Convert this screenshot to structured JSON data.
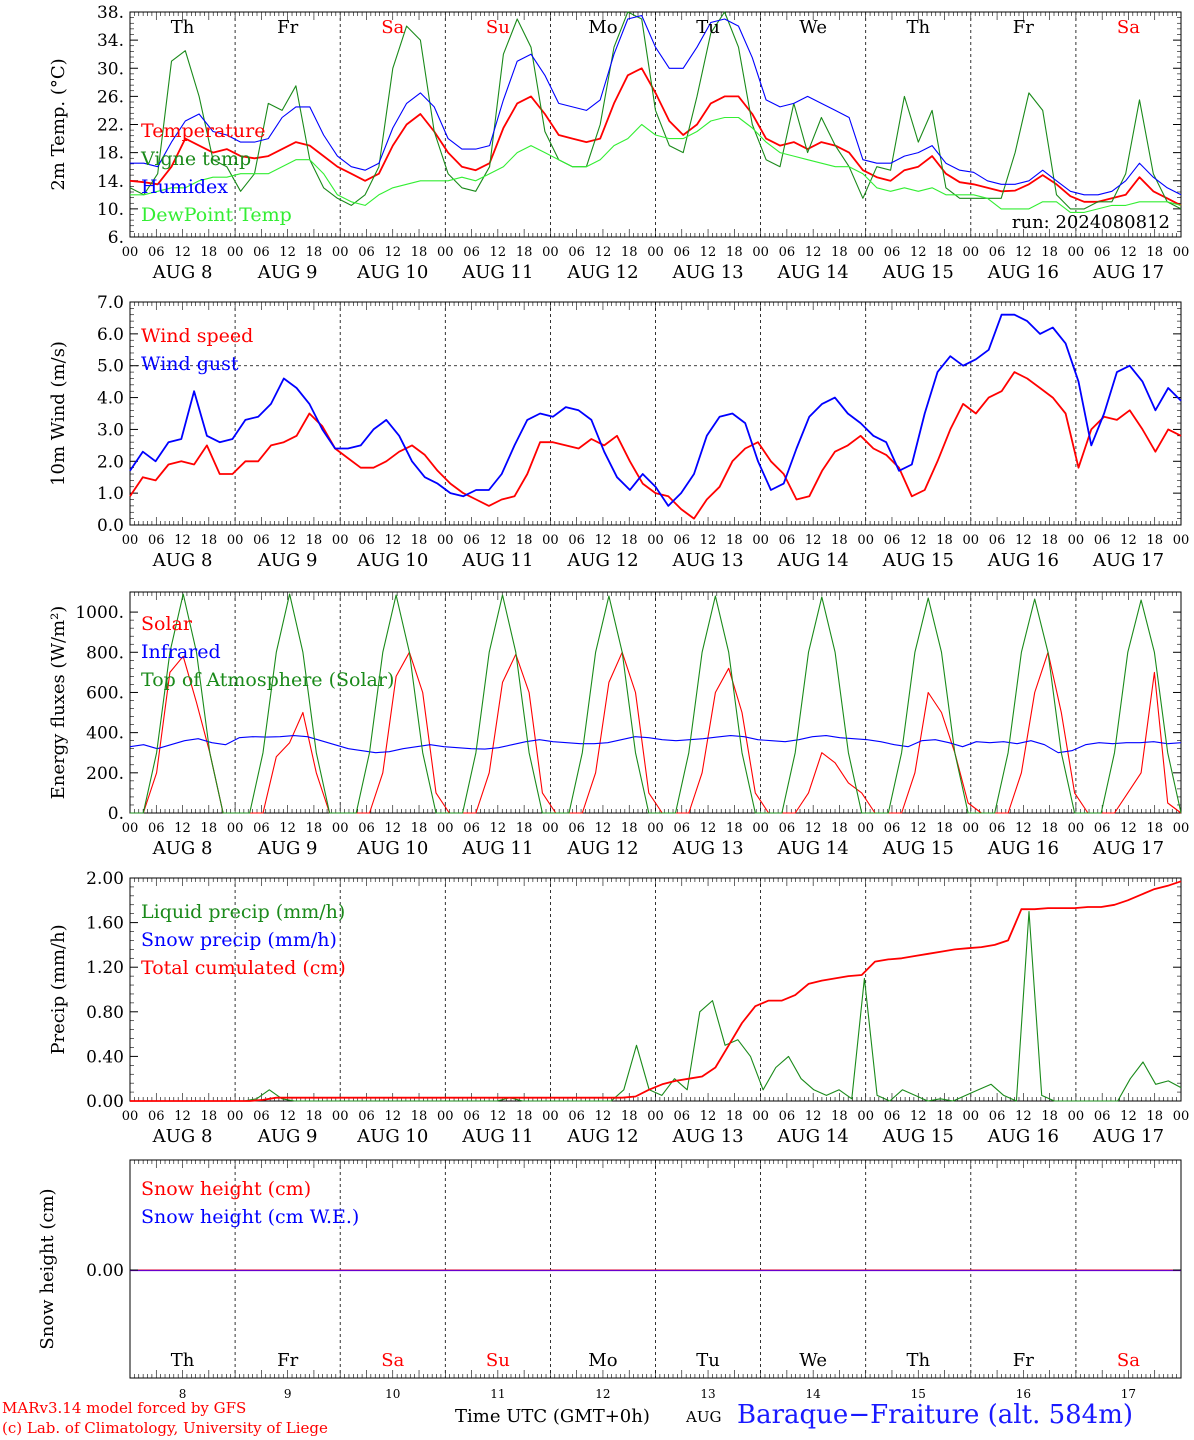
{
  "chart_data": [
    {
      "type": "line",
      "ylabel": "2m Temp. (°C)",
      "ylim": [
        6,
        38
      ],
      "yticks": [
        "6.",
        "10.",
        "14.",
        "18.",
        "22.",
        "26.",
        "30.",
        "34.",
        "38."
      ],
      "day_names": [
        "Th",
        "Fr",
        "Sa",
        "Su",
        "Mo",
        "Tu",
        "We",
        "Th",
        "Fr",
        "Sa"
      ],
      "day_name_colors": [
        "#000000",
        "#000000",
        "#ff0000",
        "#ff0000",
        "#000000",
        "#000000",
        "#000000",
        "#000000",
        "#000000",
        "#ff0000"
      ],
      "annotation": "run: 2024080812",
      "series": [
        {
          "name": "Temperature",
          "color": "#ff0000",
          "values": [
            14,
            13.8,
            13.5,
            16,
            20,
            19,
            18,
            18.5,
            17.5,
            17.2,
            17.5,
            18.5,
            19.5,
            19,
            17.5,
            16,
            15,
            14,
            15,
            19,
            22,
            23.5,
            21,
            18,
            16,
            15.5,
            16.5,
            21.5,
            25,
            26,
            23.5,
            20.5,
            20,
            19.5,
            20,
            25,
            29,
            30,
            26.5,
            22.5,
            20.5,
            22,
            25,
            26,
            26,
            23.5,
            20,
            19,
            19.5,
            18.5,
            19.5,
            19,
            18,
            15.5,
            14.5,
            14,
            15.5,
            16,
            17.5,
            15,
            13.8,
            13.5,
            13,
            12.5,
            12.6,
            13.5,
            14.8,
            13.5,
            11.8,
            11,
            11,
            11.5,
            12,
            14.5,
            12.5,
            11.5,
            10.5
          ]
        },
        {
          "name": "Vigne temp",
          "color": "#1a8a1a",
          "values": [
            13,
            12,
            15,
            31,
            32.5,
            26,
            17,
            16,
            12.5,
            15,
            25,
            24,
            27.5,
            17,
            13,
            11.5,
            10.5,
            12,
            16,
            30,
            36,
            34,
            21,
            15,
            13,
            12.5,
            16,
            32,
            37,
            33,
            21,
            17,
            16,
            16,
            22,
            33,
            38,
            37,
            24,
            19,
            18,
            26,
            35,
            38,
            33,
            22,
            17,
            16,
            25,
            18,
            23,
            19,
            16,
            11.5,
            16,
            15.5,
            26,
            19.5,
            24,
            13,
            11.5,
            11.5,
            11.5,
            11.5,
            18,
            26.5,
            24,
            12,
            10,
            10,
            11,
            11,
            15,
            25.5,
            15,
            11,
            10
          ]
        },
        {
          "name": "Humidex",
          "color": "#0000ff",
          "values": [
            16.5,
            16.5,
            16,
            19.5,
            22.5,
            23.5,
            21,
            20.5,
            19.5,
            19.5,
            20,
            23,
            24.5,
            24.5,
            20.5,
            17.5,
            16,
            15.5,
            16.5,
            21.5,
            25,
            26.5,
            24.5,
            20,
            18.5,
            18.5,
            19,
            25.5,
            31,
            32,
            29,
            25,
            24.5,
            24,
            25.5,
            32,
            37,
            37.5,
            33,
            30,
            30,
            33,
            36.5,
            37,
            36,
            31.5,
            25.5,
            24.5,
            25,
            26,
            25,
            24,
            23,
            17,
            16.5,
            16.5,
            17.5,
            18,
            19,
            16.5,
            15.5,
            15.2,
            14,
            13.5,
            13.5,
            14,
            15.5,
            14,
            12.5,
            12,
            12,
            12.5,
            14,
            16.5,
            14.5,
            13,
            12
          ]
        },
        {
          "name": "DewPoint Temp",
          "color": "#33ee33",
          "values": [
            12,
            12,
            12.5,
            13,
            13,
            14,
            14.5,
            14.5,
            15,
            15,
            15,
            16,
            17,
            17,
            15,
            12,
            11,
            10.5,
            12,
            13,
            13.5,
            14,
            14,
            14,
            14.5,
            14,
            15,
            16,
            18,
            19,
            18,
            17,
            16,
            16,
            17,
            19,
            20,
            22,
            20.5,
            20,
            20,
            21,
            22.5,
            23,
            23,
            21.5,
            19.5,
            18,
            17.5,
            17,
            16.5,
            16,
            16,
            15,
            13,
            12.5,
            13,
            12.5,
            13,
            12,
            12,
            12,
            11.5,
            10,
            10,
            10,
            11,
            11,
            9.5,
            9.5,
            10,
            10.5,
            10.5,
            11,
            11,
            11,
            10.5
          ]
        }
      ],
      "legend_placement": "top-left"
    },
    {
      "type": "line",
      "ylabel": "10m Wind (m/s)",
      "ylim": [
        0,
        7
      ],
      "yticks": [
        "0.0",
        "1.0",
        "2.0",
        "3.0",
        "4.0",
        "5.0",
        "6.0",
        "7.0"
      ],
      "reference_line": 5,
      "series": [
        {
          "name": "Wind speed",
          "color": "#ff0000",
          "values": [
            0.9,
            1.5,
            1.4,
            1.9,
            2.0,
            1.9,
            2.5,
            1.6,
            1.6,
            2.0,
            2.0,
            2.5,
            2.6,
            2.8,
            3.5,
            3.1,
            2.4,
            2.1,
            1.8,
            1.8,
            2.0,
            2.3,
            2.5,
            2.2,
            1.7,
            1.3,
            1.0,
            0.8,
            0.6,
            0.8,
            0.9,
            1.6,
            2.6,
            2.6,
            2.5,
            2.4,
            2.7,
            2.5,
            2.8,
            2.0,
            1.3,
            1.0,
            0.9,
            0.5,
            0.2,
            0.8,
            1.2,
            2.0,
            2.4,
            2.6,
            2.0,
            1.6,
            0.8,
            0.9,
            1.7,
            2.3,
            2.5,
            2.8,
            2.4,
            2.2,
            1.8,
            0.9,
            1.1,
            2.0,
            3.0,
            3.8,
            3.5,
            4.0,
            4.2,
            4.8,
            4.6,
            4.3,
            4.0,
            3.5,
            1.8,
            3.0,
            3.4,
            3.3,
            3.6,
            3.0,
            2.3,
            3.0,
            2.8
          ]
        },
        {
          "name": "Wind gust",
          "color": "#0000ff",
          "values": [
            1.7,
            2.3,
            2.0,
            2.6,
            2.7,
            4.2,
            2.8,
            2.6,
            2.7,
            3.3,
            3.4,
            3.8,
            4.6,
            4.3,
            3.8,
            3.0,
            2.4,
            2.4,
            2.5,
            3.0,
            3.3,
            2.8,
            2.0,
            1.5,
            1.3,
            1.0,
            0.9,
            1.1,
            1.1,
            1.6,
            2.5,
            3.3,
            3.5,
            3.4,
            3.7,
            3.6,
            3.3,
            2.3,
            1.5,
            1.1,
            1.6,
            1.2,
            0.6,
            1.0,
            1.6,
            2.8,
            3.4,
            3.5,
            3.2,
            2.0,
            1.1,
            1.3,
            2.4,
            3.4,
            3.8,
            4.0,
            3.5,
            3.2,
            2.8,
            2.6,
            1.7,
            1.9,
            3.5,
            4.8,
            5.3,
            5.0,
            5.2,
            5.5,
            6.6,
            6.6,
            6.4,
            6.0,
            6.2,
            5.7,
            4.5,
            2.5,
            3.5,
            4.8,
            5.0,
            4.5,
            3.6,
            4.3,
            3.9
          ]
        }
      ],
      "legend_placement": "top-left"
    },
    {
      "type": "line",
      "ylabel": "Energy fluxes (W/m²)",
      "ylim": [
        0,
        1100
      ],
      "yticks": [
        "0.",
        "200.",
        "400.",
        "600.",
        "800.",
        "1000."
      ],
      "series": [
        {
          "name": "Solar",
          "color": "#ff0000",
          "values": [
            0,
            0,
            200,
            700,
            780,
            550,
            300,
            0,
            0,
            0,
            0,
            280,
            350,
            500,
            200,
            0,
            0,
            0,
            0,
            200,
            680,
            800,
            600,
            100,
            0,
            0,
            0,
            200,
            650,
            790,
            600,
            100,
            0,
            0,
            0,
            200,
            650,
            800,
            600,
            100,
            0,
            0,
            0,
            200,
            600,
            720,
            500,
            100,
            0,
            0,
            0,
            100,
            300,
            250,
            150,
            100,
            0,
            0,
            0,
            200,
            600,
            500,
            300,
            50,
            0,
            0,
            0,
            200,
            600,
            800,
            500,
            100,
            0,
            0,
            0,
            100,
            200,
            700,
            50,
            0
          ]
        },
        {
          "name": "Infrared",
          "color": "#0000ff",
          "values": [
            330,
            340,
            320,
            340,
            360,
            370,
            350,
            340,
            375,
            380,
            378,
            380,
            385,
            380,
            360,
            340,
            320,
            310,
            300,
            305,
            320,
            330,
            340,
            330,
            325,
            320,
            318,
            325,
            340,
            355,
            365,
            355,
            350,
            345,
            345,
            350,
            365,
            380,
            375,
            365,
            360,
            365,
            370,
            378,
            385,
            380,
            365,
            360,
            355,
            365,
            380,
            385,
            375,
            370,
            365,
            355,
            340,
            330,
            360,
            365,
            350,
            330,
            355,
            350,
            355,
            345,
            360,
            340,
            300,
            310,
            340,
            350,
            345,
            350,
            350,
            355,
            345,
            350
          ]
        },
        {
          "name": "Top of Atmosphere (Solar)",
          "color": "#1a8a1a",
          "values": [
            0,
            0,
            300,
            800,
            1090,
            800,
            300,
            0,
            0,
            0,
            300,
            800,
            1090,
            800,
            300,
            0,
            0,
            0,
            300,
            800,
            1085,
            800,
            300,
            0,
            0,
            0,
            300,
            800,
            1085,
            800,
            300,
            0,
            0,
            0,
            300,
            800,
            1080,
            800,
            300,
            0,
            0,
            0,
            300,
            800,
            1080,
            800,
            300,
            0,
            0,
            0,
            300,
            800,
            1075,
            800,
            300,
            0,
            0,
            0,
            300,
            800,
            1070,
            800,
            300,
            0,
            0,
            0,
            300,
            800,
            1065,
            800,
            300,
            0,
            0,
            0,
            300,
            800,
            1060,
            800,
            300,
            0
          ]
        }
      ],
      "legend_placement": "top-left"
    },
    {
      "type": "line",
      "ylabel": "Precip (mm/h)",
      "ylim": [
        0,
        2
      ],
      "yticks": [
        "0.00",
        "0.40",
        "0.80",
        "1.20",
        "1.60",
        "2.00"
      ],
      "series": [
        {
          "name": "Liquid precip (mm/h)",
          "color": "#1a8a1a",
          "values": [
            0,
            0,
            0,
            0,
            0,
            0,
            0,
            0,
            0,
            0,
            0.02,
            0.1,
            0.02,
            0,
            0,
            0,
            0,
            0,
            0,
            0,
            0,
            0,
            0,
            0,
            0,
            0,
            0,
            0,
            0,
            0,
            0.03,
            0,
            0,
            0,
            0,
            0,
            0,
            0,
            0,
            0.1,
            0.5,
            0.1,
            0.05,
            0.2,
            0.1,
            0.8,
            0.9,
            0.5,
            0.55,
            0.4,
            0.1,
            0.3,
            0.4,
            0.2,
            0.1,
            0.05,
            0.1,
            0.02,
            1.1,
            0.05,
            0,
            0.1,
            0.05,
            0,
            0.02,
            0,
            0.05,
            0.1,
            0.15,
            0.05,
            0,
            1.7,
            0.05,
            0,
            0,
            0,
            0,
            0,
            0,
            0.2,
            0.35,
            0.15,
            0.18,
            0.12
          ]
        },
        {
          "name": "Snow precip (mm/h)",
          "color": "#0000ff",
          "values": []
        },
        {
          "name": "Total cumulated (cm)",
          "color": "#ff0000",
          "values": [
            0,
            0,
            0,
            0,
            0,
            0,
            0,
            0,
            0,
            0,
            0.01,
            0.03,
            0.03,
            0.03,
            0.03,
            0.03,
            0.03,
            0.03,
            0.03,
            0.03,
            0.03,
            0.03,
            0.03,
            0.03,
            0.03,
            0.03,
            0.03,
            0.03,
            0.03,
            0.03,
            0.03,
            0.03,
            0.03,
            0.03,
            0.03,
            0.03,
            0.03,
            0.03,
            0.04,
            0.1,
            0.15,
            0.18,
            0.2,
            0.22,
            0.3,
            0.5,
            0.7,
            0.85,
            0.9,
            0.9,
            0.95,
            1.05,
            1.08,
            1.1,
            1.12,
            1.13,
            1.25,
            1.27,
            1.28,
            1.3,
            1.32,
            1.34,
            1.36,
            1.37,
            1.38,
            1.4,
            1.44,
            1.72,
            1.72,
            1.73,
            1.73,
            1.73,
            1.74,
            1.74,
            1.76,
            1.8,
            1.85,
            1.9,
            1.93,
            1.97
          ]
        }
      ],
      "legend_placement": "top-left"
    },
    {
      "type": "line",
      "ylabel": "Snow height (cm)",
      "yticks": [
        "0.00"
      ],
      "series": [
        {
          "name": "Snow height (cm)",
          "color": "#ff0000",
          "values": [
            0,
            0
          ]
        },
        {
          "name": "Snow height (cm W.E.)",
          "color": "#0000ff",
          "values": [
            0,
            0
          ]
        }
      ],
      "day_names": [
        "Th",
        "Fr",
        "Sa",
        "Su",
        "Mo",
        "Tu",
        "We",
        "Th",
        "Fr",
        "Sa"
      ],
      "day_numbers": [
        "8",
        "9",
        "10",
        "11",
        "12",
        "13",
        "14",
        "15",
        "16",
        "17"
      ],
      "legend_placement": "top-left"
    }
  ],
  "x_axis": {
    "hour_ticks": [
      "00",
      "06",
      "12",
      "18"
    ],
    "end_tick": "00",
    "date_labels": [
      "AUG  8",
      "AUG  9",
      "AUG 10",
      "AUG 11",
      "AUG 12",
      "AUG 13",
      "AUG 14",
      "AUG 15",
      "AUG 16",
      "AUG 17"
    ],
    "title": "Time UTC (GMT+0h)",
    "month": "AUG"
  },
  "footer": {
    "credit_line1": "MARv3.14 model forced by GFS",
    "credit_line2": "(c) Lab. of Climatology, University of Liege",
    "station": "Baraque−Fraiture (alt. 584m)"
  }
}
